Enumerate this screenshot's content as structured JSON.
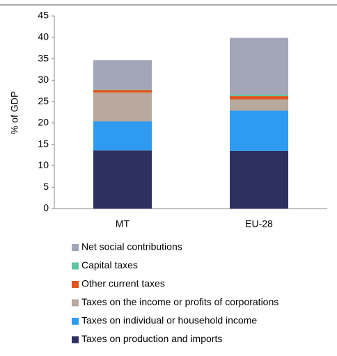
{
  "chart_data": {
    "type": "stacked_bar",
    "y_label": "% of GDP",
    "categories": [
      "MT",
      "EU-28"
    ],
    "series": [
      {
        "name": "Taxes on production and imports",
        "color": "#2e3160",
        "values": [
          13.6,
          13.5
        ]
      },
      {
        "name": "Taxes on individual or household income",
        "color": "#2e9bf0",
        "values": [
          6.8,
          9.4
        ]
      },
      {
        "name": "Taxes on the income or profits of corporations",
        "color": "#b8a89e",
        "values": [
          6.7,
          2.6
        ]
      },
      {
        "name": "Other current taxes",
        "color": "#e0541e",
        "values": [
          0.6,
          0.8
        ]
      },
      {
        "name": "Capital taxes",
        "color": "#5fc4a0",
        "values": [
          0.1,
          0.3
        ]
      },
      {
        "name": "Net social contributions",
        "color": "#a3a6b8",
        "values": [
          6.9,
          13.3
        ]
      }
    ],
    "ylim": [
      0,
      45
    ],
    "yticks": [
      0,
      5,
      10,
      15,
      20,
      25,
      30,
      35,
      40,
      45
    ]
  }
}
